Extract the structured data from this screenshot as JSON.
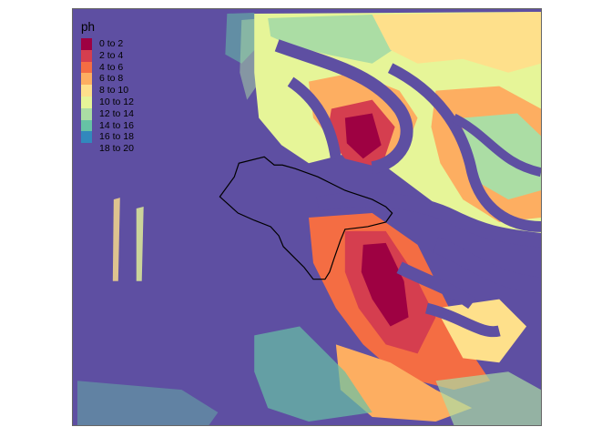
{
  "legend": {
    "title": "ph",
    "classes": [
      {
        "label": "0 to 2",
        "color": "#9e0142"
      },
      {
        "label": "2 to 4",
        "color": "#d53e4f"
      },
      {
        "label": "4 to 6",
        "color": "#f46d43"
      },
      {
        "label": "6 to 8",
        "color": "#fdae61"
      },
      {
        "label": "8 to 10",
        "color": "#fee08b"
      },
      {
        "label": "10 to 12",
        "color": "#e6f598"
      },
      {
        "label": "12 to 14",
        "color": "#abdda4"
      },
      {
        "label": "14 to 16",
        "color": "#66c2a5"
      },
      {
        "label": "16 to 18",
        "color": "#3288bd"
      },
      {
        "label": "18 to 20",
        "color": "#5e4fa2"
      }
    ]
  },
  "map": {
    "background_color": "#5e4fa2",
    "outline_color": "#000000"
  }
}
